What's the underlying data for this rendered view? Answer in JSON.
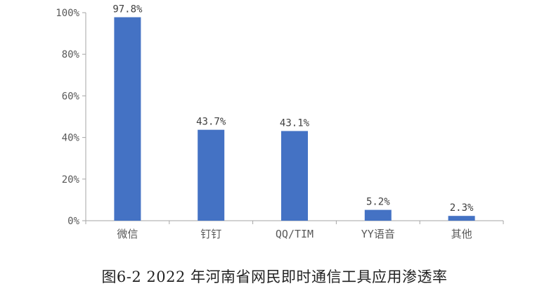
{
  "caption": "图6-2 2022 年河南省网民即时通信工具应用渗透率",
  "chart_data": {
    "type": "bar",
    "categories": [
      "微信",
      "钉钉",
      "QQ/TIM",
      "YY语音",
      "其他"
    ],
    "series": [
      {
        "values": [
          97.8,
          43.7,
          43.1,
          5.2,
          2.3
        ],
        "data_labels": [
          "97.8%",
          "43.7%",
          "43.1%",
          "5.2%",
          "2.3%"
        ],
        "color": "#4472C4"
      }
    ],
    "ylim": [
      0,
      100
    ],
    "yticks": [
      0,
      20,
      40,
      60,
      80,
      100
    ],
    "ytick_labels": [
      "0%",
      "20%",
      "40%",
      "60%",
      "80%",
      "100%"
    ],
    "title": "",
    "xlabel": "",
    "ylabel": "",
    "grid": false,
    "legend": "none"
  }
}
